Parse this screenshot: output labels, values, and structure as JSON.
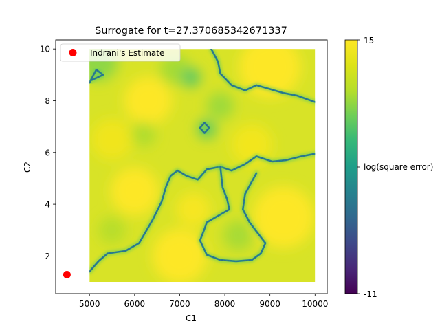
{
  "chart_data": {
    "type": "heatmap",
    "title": "Surrogate for t=27.370685342671337",
    "xlabel": "C1",
    "ylabel": "C2",
    "xlim": [
      4250,
      10270
    ],
    "ylim": [
      0.55,
      10.35
    ],
    "xticks": [
      5000,
      6000,
      7000,
      8000,
      9000,
      10000
    ],
    "yticks": [
      2,
      4,
      6,
      8,
      10
    ],
    "xtick_labels": [
      "5000",
      "6000",
      "7000",
      "8000",
      "9000",
      "10000"
    ],
    "ytick_labels": [
      "2",
      "4",
      "6",
      "8",
      "10"
    ],
    "data_extent": {
      "x": [
        5000,
        10000
      ],
      "y": [
        1,
        10
      ]
    },
    "colormap": "viridis",
    "colorbar": {
      "label": "log(square error)",
      "min": -11,
      "max": 15,
      "tick_labels": [
        "15",
        "log(square error)",
        "-11"
      ]
    },
    "legend": {
      "label": "Indrani's Estimate",
      "position": "upper-left"
    },
    "estimate_point": {
      "x": 4500,
      "y": 1.28,
      "color": "#ff0000"
    },
    "low_error_contours": [
      {
        "name": "upper-right ridge",
        "points": [
          [
            7700,
            10
          ],
          [
            7850,
            9.5
          ],
          [
            7900,
            9.05
          ],
          [
            8150,
            8.6
          ],
          [
            8450,
            8.4
          ],
          [
            8700,
            8.6
          ],
          [
            9000,
            8.45
          ],
          [
            9300,
            8.3
          ],
          [
            9600,
            8.2
          ],
          [
            10000,
            7.95
          ]
        ]
      },
      {
        "name": "central ridge",
        "points": [
          [
            5000,
            1.4
          ],
          [
            5200,
            1.8
          ],
          [
            5400,
            2.1
          ],
          [
            5800,
            2.2
          ],
          [
            6100,
            2.5
          ],
          [
            6400,
            3.4
          ],
          [
            6600,
            4.1
          ],
          [
            6700,
            4.7
          ],
          [
            6800,
            5.1
          ],
          [
            6950,
            5.3
          ],
          [
            7150,
            5.1
          ],
          [
            7400,
            4.95
          ],
          [
            7600,
            5.35
          ],
          [
            7900,
            5.45
          ],
          [
            8150,
            5.3
          ],
          [
            8450,
            5.55
          ],
          [
            8700,
            5.85
          ],
          [
            9050,
            5.65
          ],
          [
            9350,
            5.7
          ],
          [
            9700,
            5.85
          ],
          [
            10000,
            5.95
          ]
        ]
      },
      {
        "name": "lower loop",
        "points": [
          [
            7900,
            5.45
          ],
          [
            7950,
            4.65
          ],
          [
            8050,
            4.2
          ],
          [
            8100,
            3.8
          ],
          [
            7800,
            3.5
          ],
          [
            7600,
            3.3
          ],
          [
            7550,
            3.05
          ],
          [
            7450,
            2.6
          ],
          [
            7600,
            2.05
          ],
          [
            7900,
            1.85
          ],
          [
            8250,
            1.8
          ],
          [
            8600,
            1.85
          ],
          [
            8800,
            2.1
          ],
          [
            8900,
            2.5
          ],
          [
            8700,
            2.95
          ],
          [
            8550,
            3.3
          ],
          [
            8400,
            3.8
          ],
          [
            8450,
            4.4
          ],
          [
            8700,
            5.2
          ]
        ]
      },
      {
        "name": "small ring",
        "points": [
          [
            7450,
            6.95
          ],
          [
            7550,
            7.15
          ],
          [
            7650,
            6.95
          ],
          [
            7550,
            6.75
          ],
          [
            7450,
            6.95
          ]
        ]
      },
      {
        "name": "left edge",
        "points": [
          [
            5000,
            8.7
          ],
          [
            5150,
            9.2
          ],
          [
            5300,
            9.0
          ],
          [
            5050,
            8.8
          ]
        ]
      }
    ]
  }
}
